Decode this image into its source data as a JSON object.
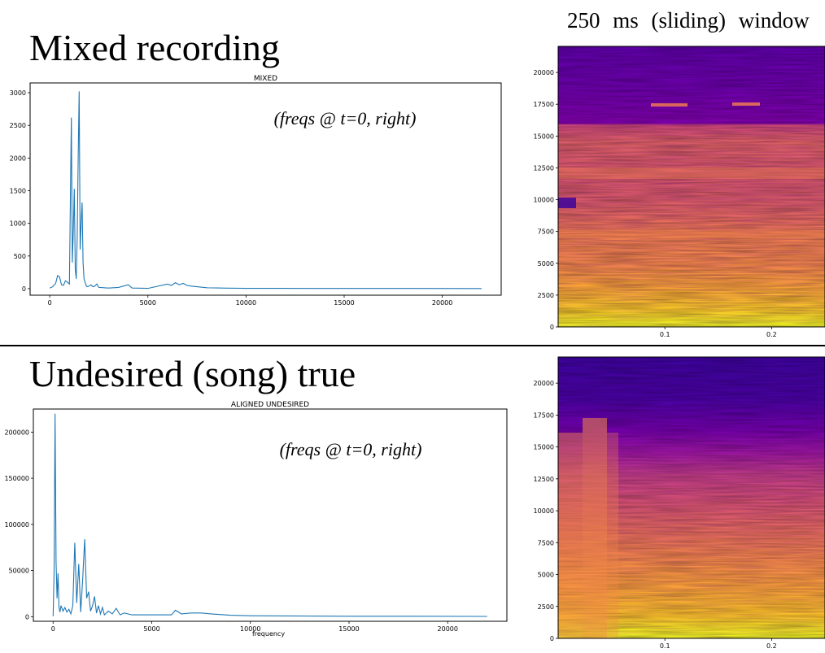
{
  "headings": {
    "window_title": "250 ms (sliding) window",
    "top": "Mixed recording",
    "bottom": "Undesired (song) true"
  },
  "colors": {
    "line": "#1f77b4",
    "axis": "#000000",
    "colormap": [
      "#0d0887",
      "#5b02a3",
      "#9a179b",
      "#cb4678",
      "#eb7852",
      "#fbb32f",
      "#eff821"
    ]
  },
  "chart_data": [
    {
      "type": "line",
      "title": "MIXED",
      "annotation": "(freqs @ t=0, right)",
      "xlabel": "",
      "ylabel": "",
      "xlim": [
        -1000,
        23000
      ],
      "ylim": [
        -100,
        3150
      ],
      "xticks": [
        "0",
        "5000",
        "10000",
        "15000",
        "20000"
      ],
      "yticks": [
        "0",
        "500",
        "1000",
        "1500",
        "2000",
        "2500",
        "3000"
      ],
      "grid": false,
      "x": [
        0,
        150,
        300,
        400,
        500,
        600,
        700,
        800,
        900,
        1000,
        1100,
        1150,
        1200,
        1250,
        1300,
        1350,
        1400,
        1450,
        1500,
        1550,
        1600,
        1650,
        1700,
        1750,
        1800,
        1850,
        1900,
        2000,
        2100,
        2200,
        2300,
        2400,
        2500,
        3000,
        3500,
        4000,
        4200,
        5000,
        6000,
        6200,
        6400,
        6600,
        6800,
        7000,
        7200,
        7500,
        8000,
        9000,
        10000,
        12000,
        15000,
        18000,
        22000
      ],
      "values": [
        10,
        30,
        80,
        200,
        180,
        60,
        50,
        120,
        100,
        70,
        2620,
        400,
        900,
        1530,
        300,
        150,
        800,
        2000,
        3020,
        600,
        1000,
        1320,
        400,
        150,
        100,
        50,
        30,
        40,
        60,
        30,
        40,
        70,
        20,
        10,
        20,
        60,
        10,
        5,
        70,
        50,
        90,
        60,
        80,
        50,
        40,
        30,
        15,
        8,
        5,
        5,
        3,
        3,
        2
      ]
    },
    {
      "type": "line",
      "title": "ALIGNED UNDESIRED",
      "annotation": "(freqs @ t=0, right)",
      "xlabel": "frequency",
      "ylabel": "",
      "xlim": [
        -1000,
        23000
      ],
      "ylim": [
        -5000,
        225000
      ],
      "xticks": [
        "0",
        "5000",
        "10000",
        "15000",
        "20000"
      ],
      "yticks": [
        "0",
        "50000",
        "100000",
        "150000",
        "200000"
      ],
      "grid": false,
      "x": [
        0,
        50,
        100,
        150,
        200,
        250,
        300,
        350,
        400,
        500,
        600,
        700,
        800,
        900,
        1000,
        1100,
        1200,
        1300,
        1400,
        1500,
        1600,
        1700,
        1800,
        1900,
        2000,
        2100,
        2200,
        2300,
        2400,
        2500,
        2600,
        2800,
        3000,
        3200,
        3400,
        3600,
        4000,
        5000,
        6000,
        6200,
        6500,
        7000,
        7500,
        8000,
        9000,
        10000,
        12000,
        15000,
        18000,
        22000
      ],
      "values": [
        500,
        50000,
        220000,
        60000,
        20000,
        47000,
        10000,
        5000,
        12000,
        6000,
        10000,
        5000,
        8000,
        3000,
        12000,
        80000,
        15000,
        57000,
        5000,
        40000,
        84000,
        20000,
        27000,
        6000,
        12000,
        22000,
        4000,
        12000,
        3000,
        10000,
        2000,
        6000,
        3000,
        9000,
        2000,
        4000,
        2000,
        2000,
        2000,
        7000,
        3000,
        4000,
        4000,
        3000,
        1500,
        1000,
        800,
        500,
        500,
        300
      ]
    },
    {
      "type": "heatmap",
      "title": "",
      "xlabel": "",
      "ylabel": "",
      "xlim": [
        0,
        0.25
      ],
      "ylim": [
        0,
        22050
      ],
      "xticks": [
        "0.1",
        "0.2"
      ],
      "yticks": [
        "0",
        "2500",
        "5000",
        "7500",
        "10000",
        "12500",
        "15000",
        "17500",
        "20000"
      ]
    },
    {
      "type": "heatmap",
      "title": "",
      "xlabel": "",
      "ylabel": "",
      "xlim": [
        0,
        0.25
      ],
      "ylim": [
        0,
        22050
      ],
      "xticks": [
        "0.1",
        "0.2"
      ],
      "yticks": [
        "0",
        "2500",
        "5000",
        "7500",
        "10000",
        "12500",
        "15000",
        "17500",
        "20000"
      ]
    }
  ]
}
